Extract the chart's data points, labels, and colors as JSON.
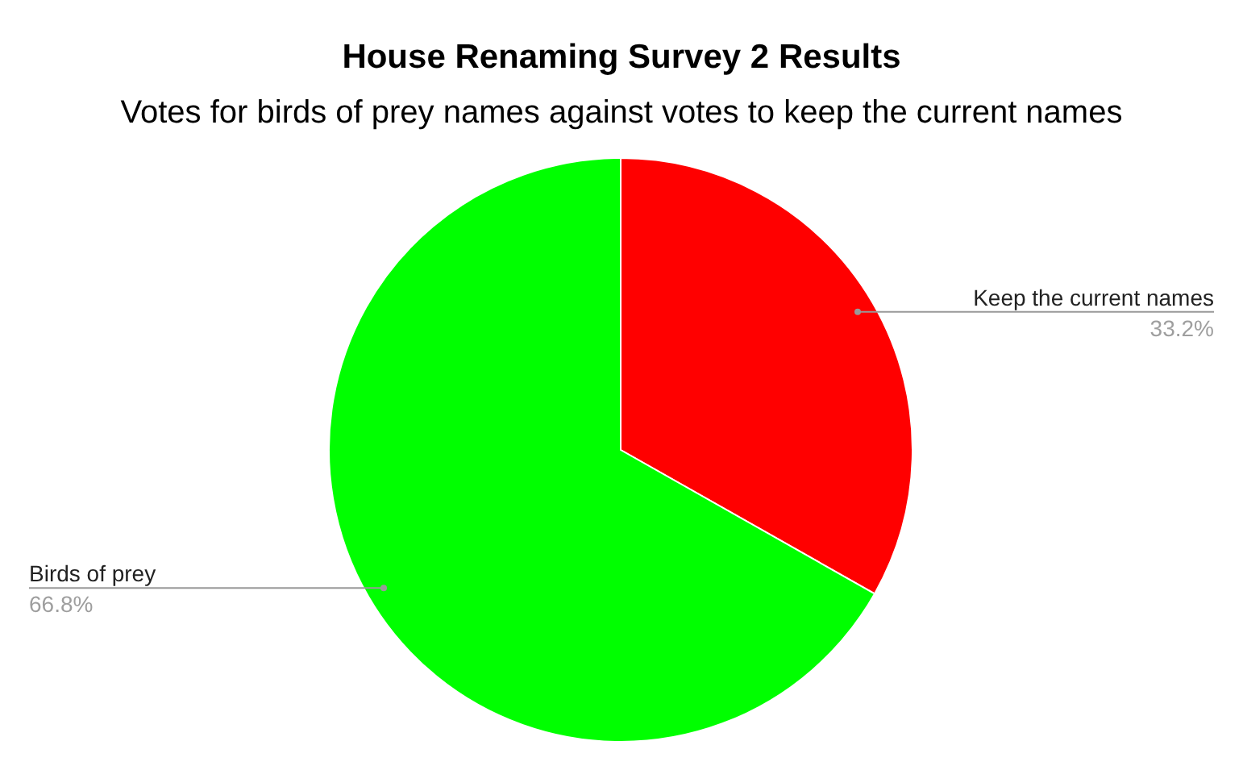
{
  "chart_data": {
    "type": "pie",
    "title": "House Renaming Survey 2 Results",
    "subtitle": "Votes for birds of prey names against votes to keep the current names",
    "categories": [
      "Keep the current names",
      "Birds of prey"
    ],
    "values": [
      33.2,
      66.8
    ],
    "colors": [
      "#ff0000",
      "#00ff00"
    ],
    "value_labels": [
      "33.2%",
      "66.8%"
    ],
    "legend": false
  }
}
